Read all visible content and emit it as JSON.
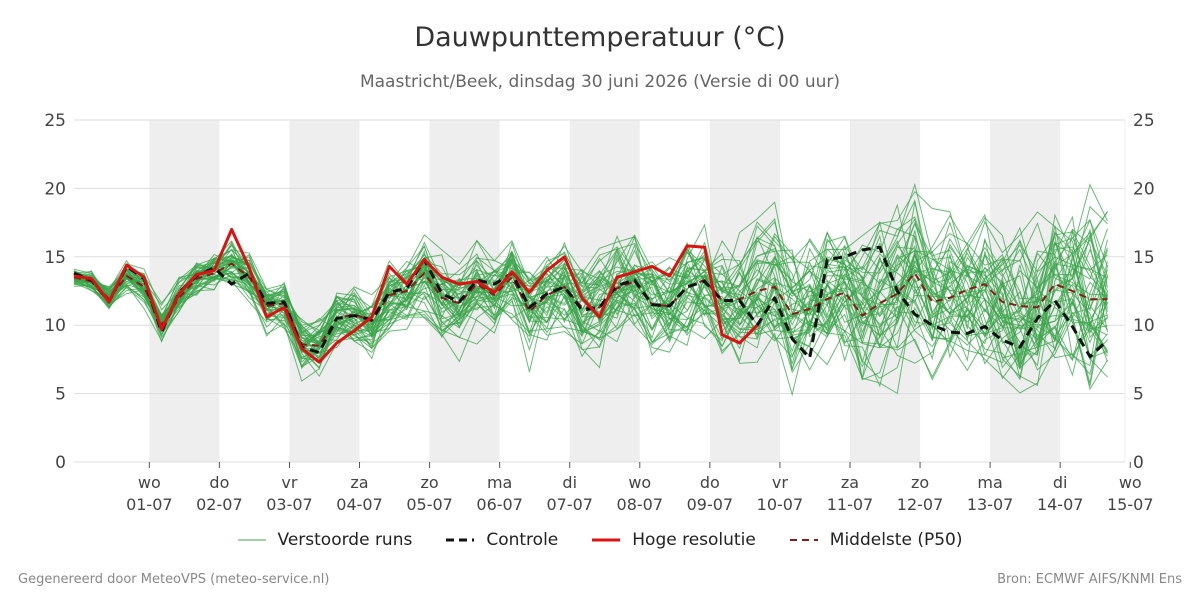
{
  "header": {
    "title": "Dauwpunttemperatuur (°C)",
    "subtitle": "Maastricht/Beek, dinsdag 30 juni 2026 (Versie di 00 uur)"
  },
  "footer": {
    "left": "Gegenereerd door MeteoVPS (meteo-service.nl)",
    "right": "Bron: ECMWF AIFS/KNMI Ens"
  },
  "colors": {
    "ensemble": "#3aa44a",
    "control": "#111111",
    "high_res": "#dd1111",
    "median": "#8b1a1a",
    "weekend_shade": "#eeeeee",
    "grid": "#dddddd"
  },
  "chart_data": {
    "type": "line",
    "ylim": [
      0,
      25
    ],
    "yticks": [
      0,
      5,
      10,
      15,
      20,
      25
    ],
    "x_unit": "6-hour steps from 30-06 00 UTC",
    "x_range": [
      0,
      60
    ],
    "day_ticks": [
      {
        "weekday": "wo",
        "date": "01-07"
      },
      {
        "weekday": "do",
        "date": "02-07"
      },
      {
        "weekday": "vr",
        "date": "03-07"
      },
      {
        "weekday": "za",
        "date": "04-07"
      },
      {
        "weekday": "zo",
        "date": "05-07"
      },
      {
        "weekday": "ma",
        "date": "06-07"
      },
      {
        "weekday": "di",
        "date": "07-07"
      },
      {
        "weekday": "wo",
        "date": "08-07"
      },
      {
        "weekday": "do",
        "date": "09-07"
      },
      {
        "weekday": "vr",
        "date": "10-07"
      },
      {
        "weekday": "za",
        "date": "11-07"
      },
      {
        "weekday": "zo",
        "date": "12-07"
      },
      {
        "weekday": "ma",
        "date": "13-07"
      },
      {
        "weekday": "di",
        "date": "14-07"
      },
      {
        "weekday": "wo",
        "date": "15-07"
      }
    ],
    "shaded_days": [
      "01-07",
      "03-07",
      "05-07",
      "07-07",
      "09-07",
      "11-07",
      "13-07"
    ],
    "legend": [
      {
        "key": "ensemble",
        "label": "Verstoorde runs",
        "style": "thin"
      },
      {
        "key": "control",
        "label": "Controle",
        "style": "dashed"
      },
      {
        "key": "high_res",
        "label": "Hoge resolutie",
        "style": "solid"
      },
      {
        "key": "median",
        "label": "Middelste (P50)",
        "style": "dashed"
      }
    ],
    "series": [
      {
        "key": "high_res",
        "name": "Hoge resolutie",
        "start": 0,
        "values": [
          13.6,
          13.4,
          11.7,
          14.4,
          13.5,
          9.7,
          12.3,
          13.7,
          14.0,
          17.0,
          14.2,
          10.6,
          11.3,
          8.3,
          7.3,
          8.7,
          9.6,
          10.6,
          14.3,
          13.0,
          14.8,
          13.5,
          13.0,
          13.2,
          12.4,
          13.9,
          12.4,
          14.0,
          15.0,
          12.0,
          10.6,
          13.5,
          13.9,
          14.3,
          13.6,
          15.8,
          15.7,
          9.3,
          8.7,
          10.0
        ]
      },
      {
        "key": "control",
        "name": "Controle",
        "start": 0,
        "values": [
          13.8,
          13.3,
          11.7,
          14.3,
          13.4,
          9.5,
          12.4,
          13.6,
          14.2,
          13.0,
          13.8,
          11.6,
          11.7,
          8.4,
          8.0,
          10.5,
          10.7,
          10.4,
          12.4,
          12.7,
          14.8,
          12.3,
          11.7,
          13.3,
          13.0,
          13.8,
          11.3,
          12.3,
          12.8,
          11.1,
          11.3,
          12.9,
          13.3,
          11.5,
          11.4,
          12.8,
          13.2,
          11.8,
          11.8,
          10.0,
          12.0,
          9.0,
          7.6,
          14.8,
          15.0,
          15.5,
          15.7,
          12.5,
          10.8,
          10.0,
          9.5,
          9.4,
          9.9,
          8.9,
          8.4,
          10.5,
          11.8,
          9.9,
          7.7,
          8.9
        ]
      },
      {
        "key": "median",
        "name": "Middelste (P50)",
        "start": 0,
        "values": [
          13.5,
          13.2,
          11.9,
          13.6,
          12.8,
          10.0,
          12.0,
          13.4,
          13.8,
          14.5,
          13.5,
          11.4,
          11.6,
          8.6,
          8.5,
          10.5,
          10.8,
          10.3,
          12.2,
          12.5,
          13.8,
          12.0,
          11.6,
          13.0,
          12.2,
          13.5,
          11.0,
          12.2,
          12.8,
          11.3,
          11.3,
          12.7,
          13.2,
          11.5,
          11.4,
          12.8,
          13.3,
          11.8,
          11.9,
          12.5,
          12.8,
          10.8,
          11.2,
          11.9,
          12.4,
          10.7,
          11.6,
          12.3,
          13.8,
          11.7,
          12.0,
          12.6,
          13.0,
          11.7,
          11.4,
          11.3,
          13.0,
          12.5,
          11.9,
          11.9
        ]
      }
    ],
    "ensemble_members": 50
  }
}
